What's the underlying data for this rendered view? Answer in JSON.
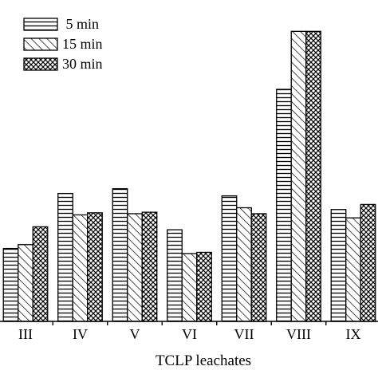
{
  "chart_data": {
    "type": "bar",
    "title": "",
    "xlabel": "TCLP leachates",
    "ylabel": "",
    "categories": [
      "III",
      "IV",
      "V",
      "VI",
      "VII",
      "VIII",
      "IX"
    ],
    "series": [
      {
        "name": " 5 min",
        "pattern": "horizontal-lines",
        "values": [
          0.245,
          0.43,
          0.446,
          0.308,
          0.422,
          0.78,
          0.376
        ]
      },
      {
        "name": "15 min",
        "pattern": "diagonal-lines",
        "values": [
          0.258,
          0.358,
          0.362,
          0.228,
          0.382,
          0.975,
          0.348
        ]
      },
      {
        "name": "30 min",
        "pattern": "cross-hatch",
        "values": [
          0.318,
          0.365,
          0.367,
          0.232,
          0.362,
          0.975,
          0.393
        ]
      }
    ],
    "ylim": [
      0,
      1
    ],
    "grid": false,
    "legend_position": "top-left",
    "colors": {
      "stroke": "#000000",
      "fill": "#ffffff"
    }
  }
}
